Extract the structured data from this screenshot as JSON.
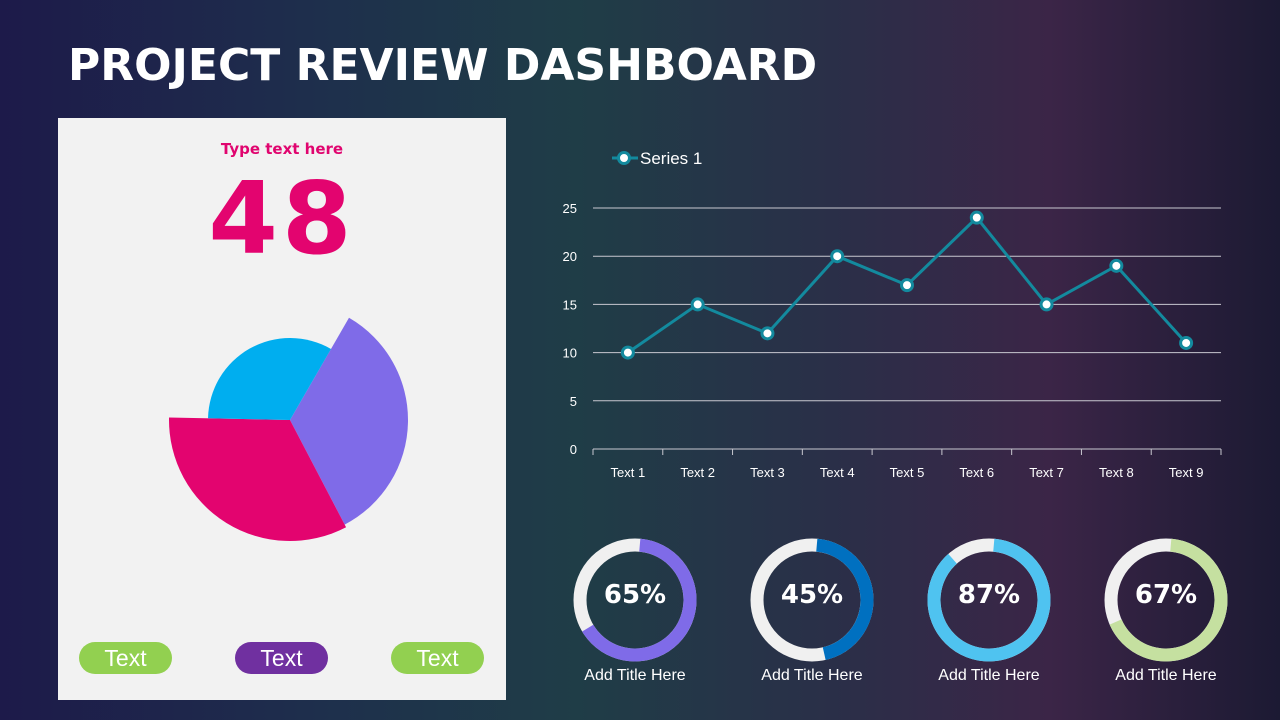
{
  "header": {
    "title": "PROJECT REVIEW DASHBOARD"
  },
  "card": {
    "label": "Type text here",
    "value": "48",
    "pie": {
      "slices": [
        {
          "value": 34,
          "color": "#7f6be8"
        },
        {
          "value": 33,
          "color": "#e3046f"
        },
        {
          "value": 33,
          "color": "#00aeef"
        }
      ]
    },
    "pills": [
      {
        "label": "Text",
        "color": "#92d050"
      },
      {
        "label": "Text",
        "color": "#7030a0"
      },
      {
        "label": "Text",
        "color": "#92d050"
      }
    ]
  },
  "chart_data": {
    "type": "line",
    "categories": [
      "Text 1",
      "Text 2",
      "Text 3",
      "Text 4",
      "Text 5",
      "Text 6",
      "Text 7",
      "Text 8",
      "Text 9"
    ],
    "series": [
      {
        "name": "Series 1",
        "values": [
          10,
          15,
          12,
          20,
          17,
          24,
          15,
          19,
          11
        ],
        "color": "#138a9e"
      }
    ],
    "ylim": [
      0,
      25
    ],
    "yticks": [
      0,
      5,
      10,
      15,
      20,
      25
    ],
    "grid": true,
    "legend": "top-left"
  },
  "donuts": [
    {
      "value": "65%",
      "percent": 65,
      "color": "#7f6be8",
      "title": "Add Title Here"
    },
    {
      "value": "45%",
      "percent": 45,
      "color": "#0070c0",
      "title": "Add Title Here"
    },
    {
      "value": "87%",
      "percent": 87,
      "color": "#4fc3f0",
      "title": "Add Title Here"
    },
    {
      "value": "67%",
      "percent": 67,
      "color": "#c5e0a0",
      "title": "Add Title Here"
    }
  ]
}
